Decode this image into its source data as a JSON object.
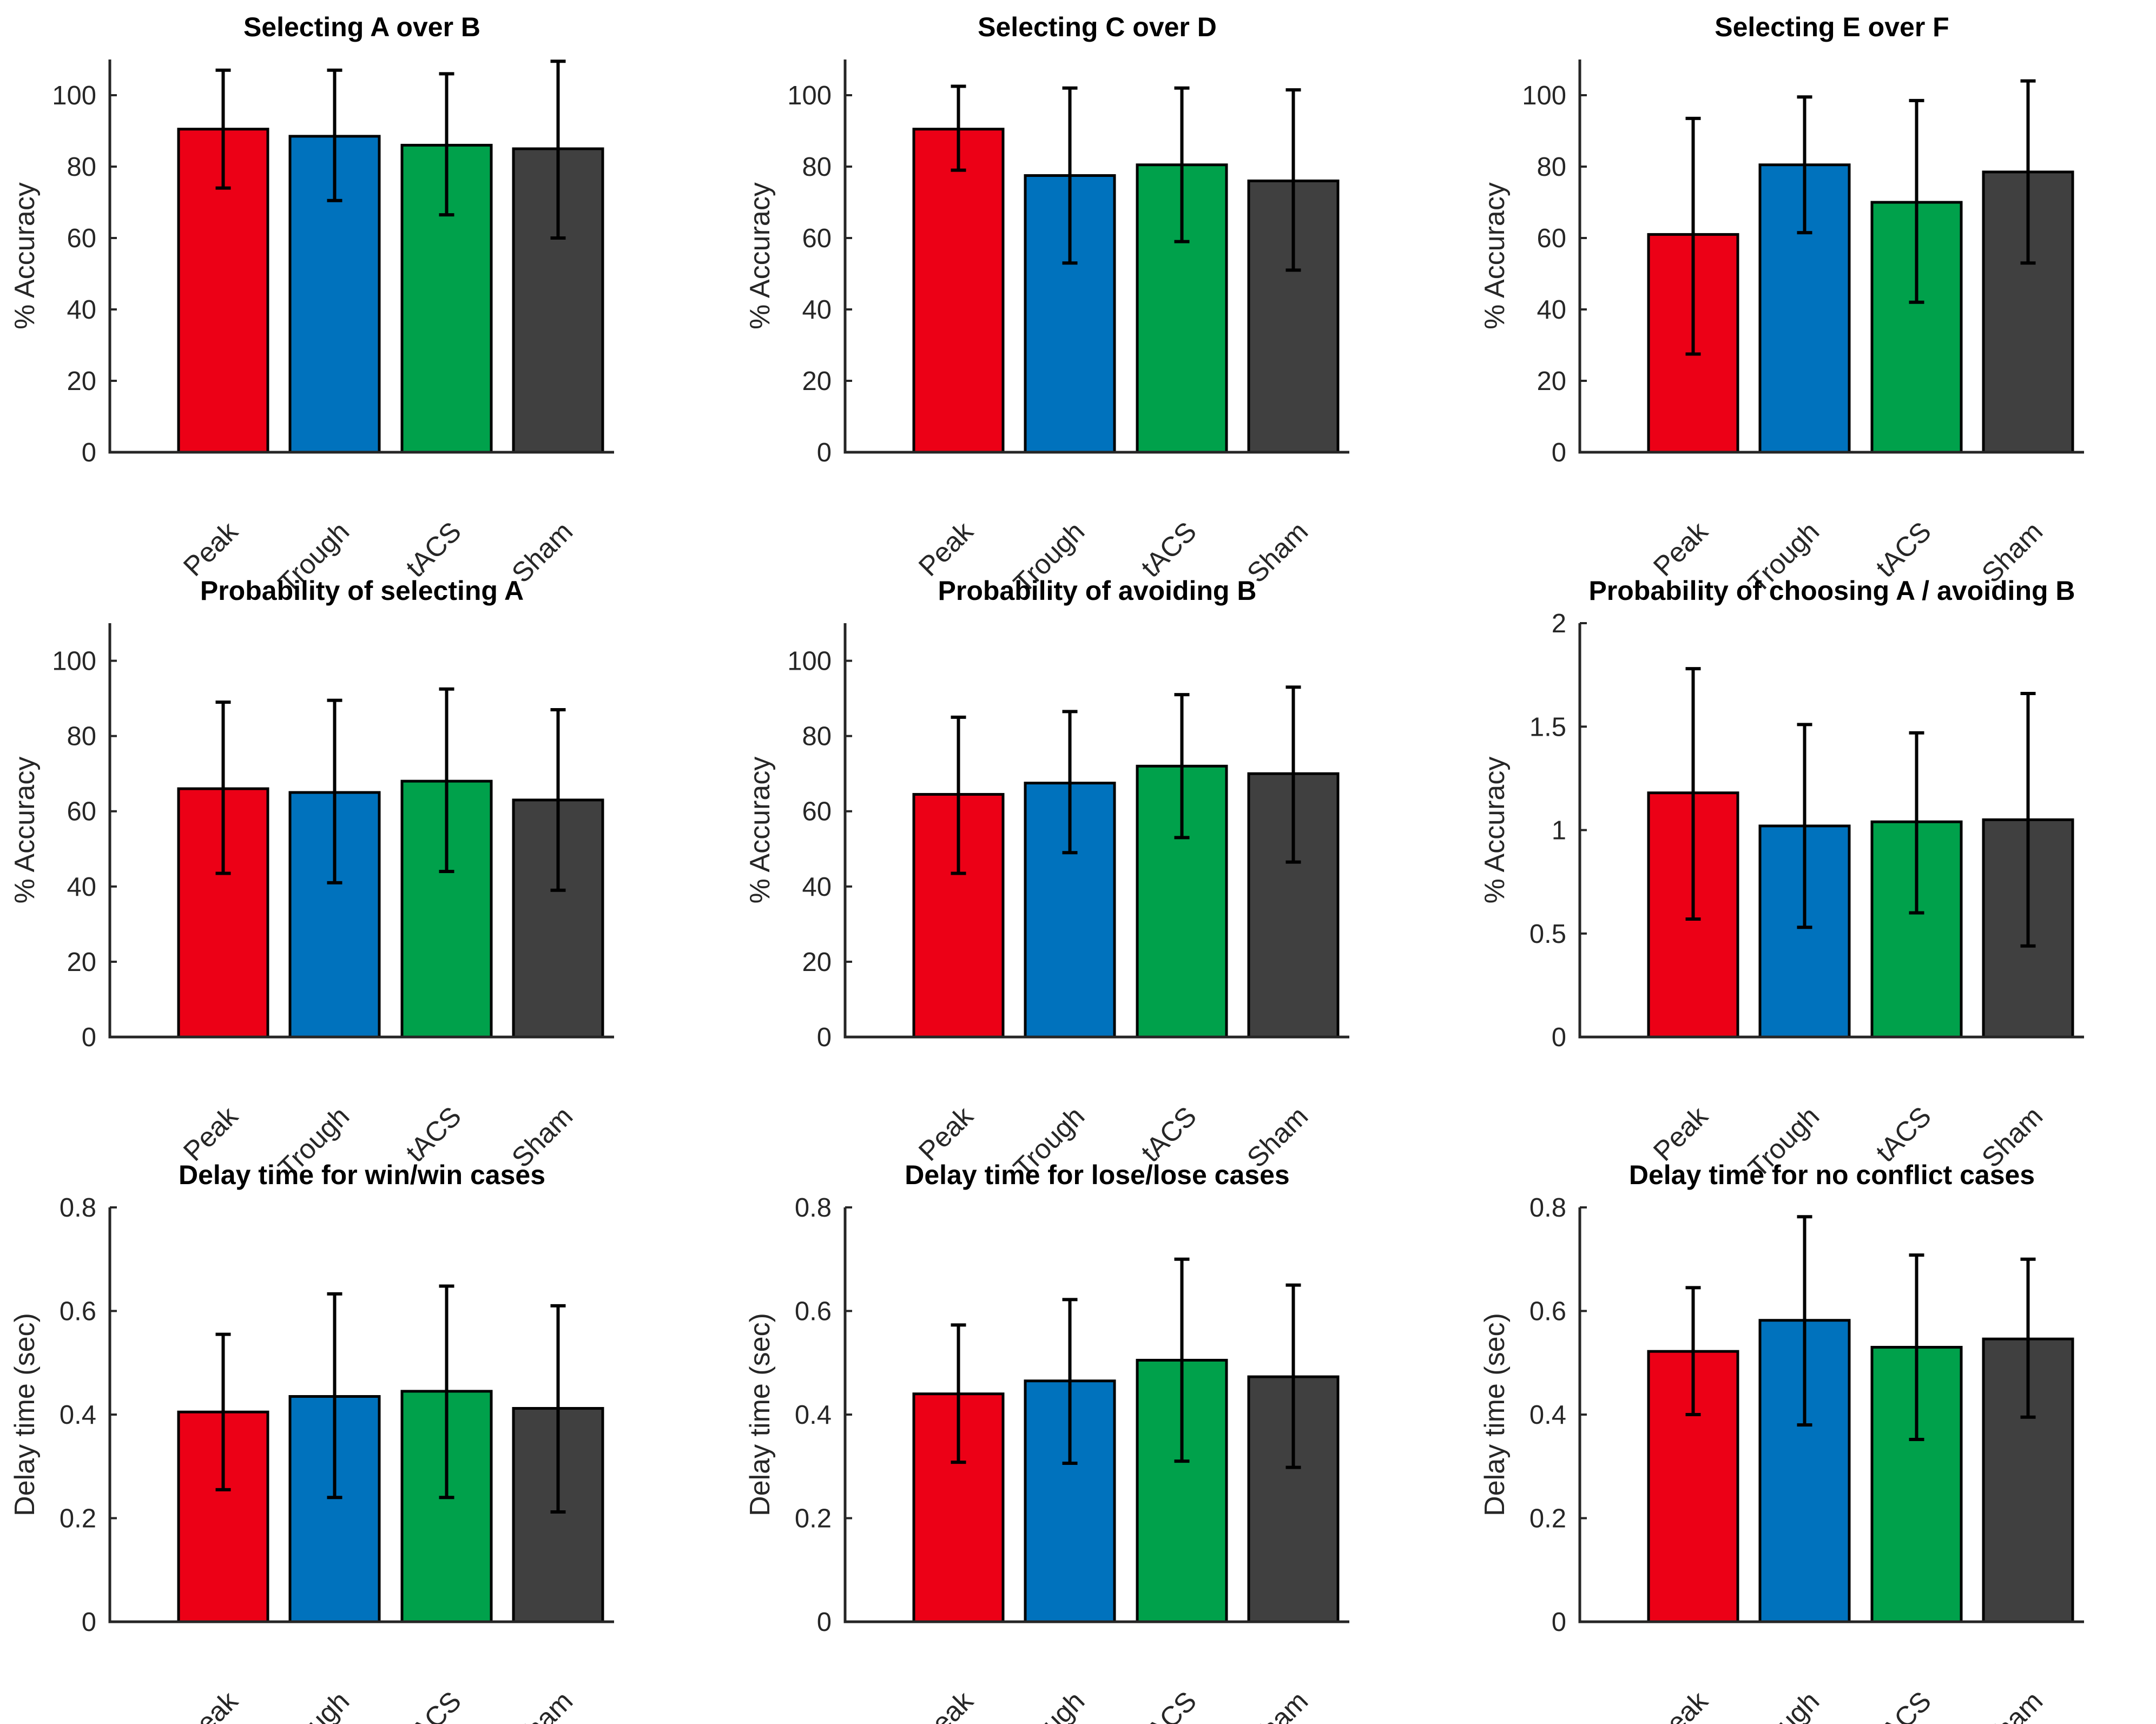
{
  "chart_data": [
    {
      "type": "bar",
      "title": "Selecting A over B",
      "categories": [
        "Peak",
        "Trough",
        "tACS",
        "Sham"
      ],
      "values": [
        90.5,
        88.5,
        86,
        85
      ],
      "error_low": [
        74,
        70.5,
        66.5,
        60
      ],
      "error_high": [
        107,
        107,
        106,
        109.5
      ],
      "ylabel": "% Accuracy",
      "ylim": [
        0,
        110
      ],
      "yticks": [
        0,
        20,
        40,
        60,
        80,
        100
      ],
      "ytick_labels": [
        "0",
        "20",
        "40",
        "60",
        "80",
        "100"
      ]
    },
    {
      "type": "bar",
      "title": "Selecting C over D",
      "categories": [
        "Peak",
        "Trough",
        "tACS",
        "Sham"
      ],
      "values": [
        90.5,
        77.5,
        80.5,
        76
      ],
      "error_low": [
        79,
        53,
        59,
        51
      ],
      "error_high": [
        102.5,
        102,
        102,
        101.5
      ],
      "ylabel": "% Accuracy",
      "ylim": [
        0,
        110
      ],
      "yticks": [
        0,
        20,
        40,
        60,
        80,
        100
      ],
      "ytick_labels": [
        "0",
        "20",
        "40",
        "60",
        "80",
        "100"
      ]
    },
    {
      "type": "bar",
      "title": "Selecting E over F",
      "categories": [
        "Peak",
        "Trough",
        "tACS",
        "Sham"
      ],
      "values": [
        61,
        80.5,
        70,
        78.5
      ],
      "error_low": [
        27.5,
        61.5,
        42,
        53
      ],
      "error_high": [
        93.5,
        99.5,
        98.5,
        104
      ],
      "ylabel": "% Accuracy",
      "ylim": [
        0,
        110
      ],
      "yticks": [
        0,
        20,
        40,
        60,
        80,
        100
      ],
      "ytick_labels": [
        "0",
        "20",
        "40",
        "60",
        "80",
        "100"
      ]
    },
    {
      "type": "bar",
      "title": "Probability of selecting A",
      "categories": [
        "Peak",
        "Trough",
        "tACS",
        "Sham"
      ],
      "values": [
        66,
        65,
        68,
        63
      ],
      "error_low": [
        43.5,
        41,
        44,
        39
      ],
      "error_high": [
        89,
        89.5,
        92.5,
        87
      ],
      "ylabel": "% Accuracy",
      "ylim": [
        0,
        110
      ],
      "yticks": [
        0,
        20,
        40,
        60,
        80,
        100
      ],
      "ytick_labels": [
        "0",
        "20",
        "40",
        "60",
        "80",
        "100"
      ]
    },
    {
      "type": "bar",
      "title": "Probability of avoiding B",
      "categories": [
        "Peak",
        "Trough",
        "tACS",
        "Sham"
      ],
      "values": [
        64.5,
        67.5,
        72,
        70
      ],
      "error_low": [
        43.5,
        49,
        53,
        46.5
      ],
      "error_high": [
        85,
        86.5,
        91,
        93
      ],
      "ylabel": "% Accuracy",
      "ylim": [
        0,
        110
      ],
      "yticks": [
        0,
        20,
        40,
        60,
        80,
        100
      ],
      "ytick_labels": [
        "0",
        "20",
        "40",
        "60",
        "80",
        "100"
      ]
    },
    {
      "type": "bar",
      "title": "Probability of choosing A / avoiding B",
      "categories": [
        "Peak",
        "Trough",
        "tACS",
        "Sham"
      ],
      "values": [
        1.18,
        1.02,
        1.04,
        1.05
      ],
      "error_low": [
        0.57,
        0.53,
        0.6,
        0.44
      ],
      "error_high": [
        1.78,
        1.51,
        1.47,
        1.66
      ],
      "ylabel": "% Accuracy",
      "ylim": [
        0,
        2
      ],
      "yticks": [
        0,
        0.5,
        1,
        1.5,
        2
      ],
      "ytick_labels": [
        "0",
        "0.5",
        "1",
        "1.5",
        "2"
      ]
    },
    {
      "type": "bar",
      "title": "Delay time for win/win cases",
      "categories": [
        "Peak",
        "Trough",
        "tACS",
        "Sham"
      ],
      "values": [
        0.405,
        0.435,
        0.445,
        0.412
      ],
      "error_low": [
        0.255,
        0.24,
        0.24,
        0.212
      ],
      "error_high": [
        0.555,
        0.633,
        0.648,
        0.61
      ],
      "ylabel": "Delay time (sec)",
      "ylim": [
        0,
        0.8
      ],
      "yticks": [
        0,
        0.2,
        0.4,
        0.6,
        0.8
      ],
      "ytick_labels": [
        "0",
        "0.2",
        "0.4",
        "0.6",
        "0.8"
      ]
    },
    {
      "type": "bar",
      "title": "Delay time for lose/lose cases",
      "categories": [
        "Peak",
        "Trough",
        "tACS",
        "Sham"
      ],
      "values": [
        0.44,
        0.465,
        0.505,
        0.473
      ],
      "error_low": [
        0.308,
        0.306,
        0.31,
        0.298
      ],
      "error_high": [
        0.573,
        0.622,
        0.7,
        0.65
      ],
      "ylabel": "Delay time (sec)",
      "ylim": [
        0,
        0.8
      ],
      "yticks": [
        0,
        0.2,
        0.4,
        0.6,
        0.8
      ],
      "ytick_labels": [
        "0",
        "0.2",
        "0.4",
        "0.6",
        "0.8"
      ]
    },
    {
      "type": "bar",
      "title": "Delay time for no conflict cases",
      "categories": [
        "Peak",
        "Trough",
        "tACS",
        "Sham"
      ],
      "values": [
        0.522,
        0.582,
        0.53,
        0.546
      ],
      "error_low": [
        0.4,
        0.38,
        0.352,
        0.395
      ],
      "error_high": [
        0.645,
        0.782,
        0.708,
        0.7
      ],
      "ylabel": "Delay time (sec)",
      "ylim": [
        0,
        0.8
      ],
      "yticks": [
        0,
        0.2,
        0.4,
        0.6,
        0.8
      ],
      "ytick_labels": [
        "0",
        "0.2",
        "0.4",
        "0.6",
        "0.8"
      ]
    }
  ],
  "bar_colors": [
    "#ec0016",
    "#0072bd",
    "#00a14b",
    "#404040"
  ]
}
